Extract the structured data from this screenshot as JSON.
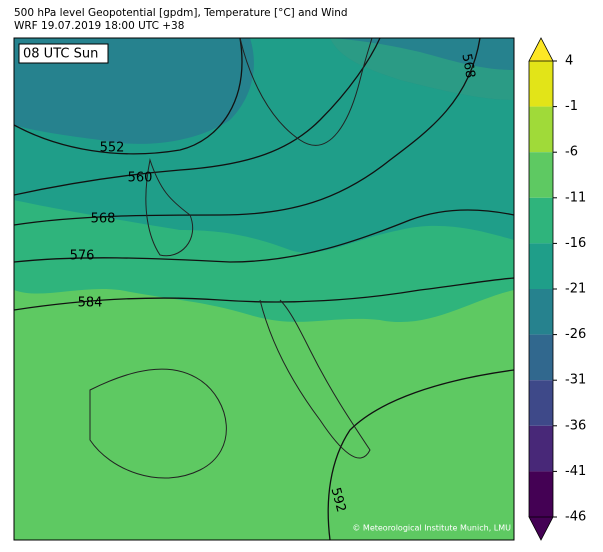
{
  "header": {
    "line1": "500 hPa level Geopotential [gpdm], Temperature [°C] and Wind",
    "line2": "WRF 19.07.2019 18:00 UTC +38"
  },
  "map": {
    "time_label": "08 UTC Sun",
    "contour_labels": [
      552,
      560,
      568,
      576,
      584,
      592,
      568
    ],
    "credit": "© Meteorological Institute Munich, LMU"
  },
  "colorbar": {
    "ticks": [
      4,
      -1,
      -6,
      -11,
      -16,
      -21,
      -26,
      -31,
      -36,
      -41,
      -46
    ],
    "colors": [
      "#e2e418",
      "#a0da39",
      "#5ec962",
      "#2fb47c",
      "#1f9e89",
      "#26828e",
      "#31688e",
      "#3e4989",
      "#482878",
      "#440154"
    ],
    "over_color": "#fde725",
    "under_color": "#440154"
  }
}
